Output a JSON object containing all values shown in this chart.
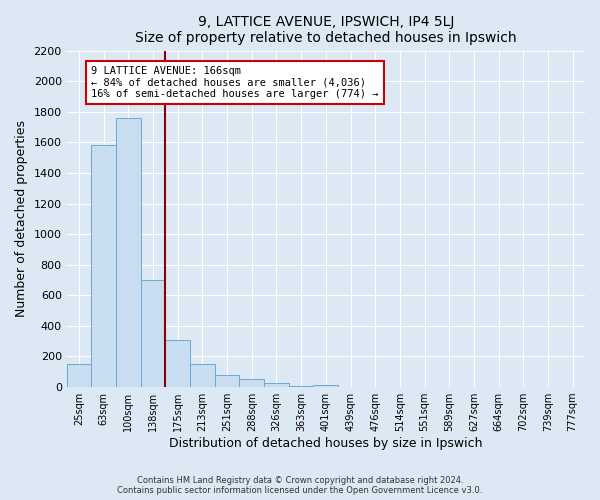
{
  "title": "9, LATTICE AVENUE, IPSWICH, IP4 5LJ",
  "subtitle": "Size of property relative to detached houses in Ipswich",
  "xlabel": "Distribution of detached houses by size in Ipswich",
  "ylabel": "Number of detached properties",
  "bar_labels": [
    "25sqm",
    "63sqm",
    "100sqm",
    "138sqm",
    "175sqm",
    "213sqm",
    "251sqm",
    "288sqm",
    "326sqm",
    "363sqm",
    "401sqm",
    "439sqm",
    "476sqm",
    "514sqm",
    "551sqm",
    "589sqm",
    "627sqm",
    "664sqm",
    "702sqm",
    "739sqm",
    "777sqm"
  ],
  "bar_values": [
    150,
    1580,
    1760,
    700,
    310,
    150,
    80,
    50,
    25,
    10,
    15,
    0,
    0,
    0,
    0,
    0,
    0,
    0,
    0,
    0,
    0
  ],
  "bar_color": "#c9ddf0",
  "bar_edge_color": "#6aaad4",
  "vline_color": "#8b0000",
  "annotation_title": "9 LATTICE AVENUE: 166sqm",
  "annotation_line2": "← 84% of detached houses are smaller (4,036)",
  "annotation_line3": "16% of semi-detached houses are larger (774) →",
  "annotation_box_color": "#ffffff",
  "annotation_box_edge": "#cc0000",
  "ylim": [
    0,
    2200
  ],
  "yticks": [
    0,
    200,
    400,
    600,
    800,
    1000,
    1200,
    1400,
    1600,
    1800,
    2000,
    2200
  ],
  "footnote1": "Contains HM Land Registry data © Crown copyright and database right 2024.",
  "footnote2": "Contains public sector information licensed under the Open Government Licence v3.0.",
  "bg_color": "#dde8f5",
  "plot_bg_color": "#dde8f5",
  "grid_color": "#ffffff"
}
